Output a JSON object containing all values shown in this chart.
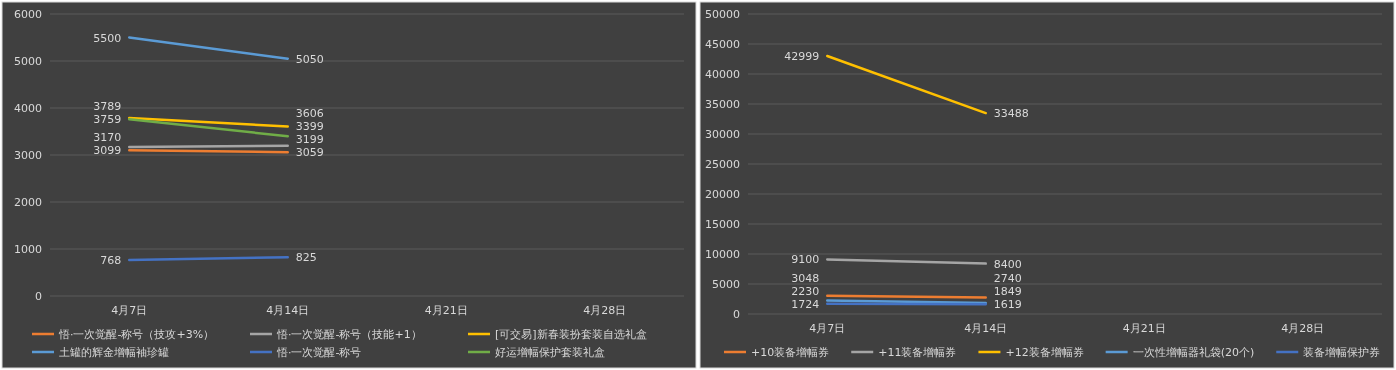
{
  "chart_data": [
    {
      "type": "line",
      "categories": [
        "4月7日",
        "4月14日",
        "4月21日",
        "4月28日"
      ],
      "series": [
        {
          "name": "悟·一次觉醒-称号（技攻+3%）",
          "color": "#ed7d31",
          "values": [
            3099,
            3059,
            null,
            null
          ]
        },
        {
          "name": "悟·一次觉醒-称号（技能+1）",
          "color": "#a5a5a5",
          "values": [
            3170,
            3199,
            null,
            null
          ]
        },
        {
          "name": "[可交易]新春装扮套装自选礼盒",
          "color": "#ffc000",
          "values": [
            3789,
            3606,
            null,
            null
          ]
        },
        {
          "name": "土罐的辉金增幅袖珍罐",
          "color": "#5b9bd5",
          "values": [
            5500,
            5050,
            null,
            null
          ]
        },
        {
          "name": "悟·一次觉醒-称号",
          "color": "#4472c4",
          "values": [
            768,
            825,
            null,
            null
          ]
        },
        {
          "name": "好运增幅保护套装礼盒",
          "color": "#70ad47",
          "values": [
            3759,
            3399,
            null,
            null
          ]
        }
      ],
      "ylim": [
        0,
        6000
      ],
      "yticks": [
        0,
        1000,
        2000,
        3000,
        4000,
        5000,
        6000
      ],
      "grid": "y",
      "legend": "bottom",
      "data_labels": true
    },
    {
      "type": "line",
      "categories": [
        "4月7日",
        "4月14日",
        "4月21日",
        "4月28日"
      ],
      "series": [
        {
          "name": "+10装备增幅券",
          "color": "#ed7d31",
          "values": [
            3048,
            2740,
            null,
            null
          ]
        },
        {
          "name": "+11装备增幅券",
          "color": "#a5a5a5",
          "values": [
            9100,
            8400,
            null,
            null
          ]
        },
        {
          "name": "+12装备增幅券",
          "color": "#ffc000",
          "values": [
            42999,
            33488,
            null,
            null
          ]
        },
        {
          "name": "一次性增幅器礼袋(20个)",
          "color": "#5b9bd5",
          "values": [
            2230,
            1849,
            null,
            null
          ]
        },
        {
          "name": "装备增幅保护券",
          "color": "#4472c4",
          "values": [
            1724,
            1619,
            null,
            null
          ]
        }
      ],
      "ylim": [
        0,
        50000
      ],
      "yticks": [
        0,
        5000,
        10000,
        15000,
        20000,
        25000,
        30000,
        35000,
        40000,
        45000,
        50000
      ],
      "grid": "y",
      "legend": "bottom",
      "data_labels": true
    }
  ]
}
